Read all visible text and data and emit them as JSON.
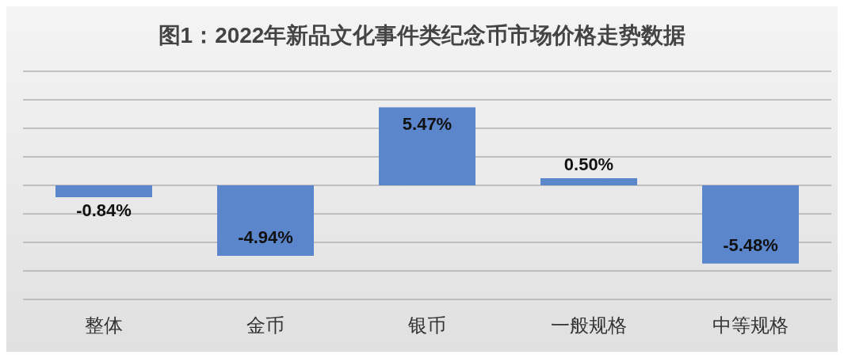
{
  "chart_data": {
    "type": "bar",
    "title": "图1：2022年新品文化事件类纪念币市场价格走势数据",
    "categories": [
      "整体",
      "金币",
      "银币",
      "一般规格",
      "中等规格"
    ],
    "values": [
      -0.84,
      -4.94,
      5.47,
      0.5,
      -5.48
    ],
    "value_labels": [
      "-0.84%",
      "-4.94%",
      "5.47%",
      "0.50%",
      "-5.48%"
    ],
    "color": "#5b86cc",
    "ylim": [
      -8,
      8
    ],
    "yticks": [
      {
        "value": -8,
        "label": null
      },
      {
        "value": -6,
        "label": null
      },
      {
        "value": -4,
        "label": null
      },
      {
        "value": -2,
        "label": null
      },
      {
        "value": 0,
        "label": null
      },
      {
        "value": 2,
        "label": null
      },
      {
        "value": 4,
        "label": null
      },
      {
        "value": 6,
        "label": null
      },
      {
        "value": 8,
        "label": null
      }
    ],
    "tick_labels": "x",
    "grid": "y"
  }
}
